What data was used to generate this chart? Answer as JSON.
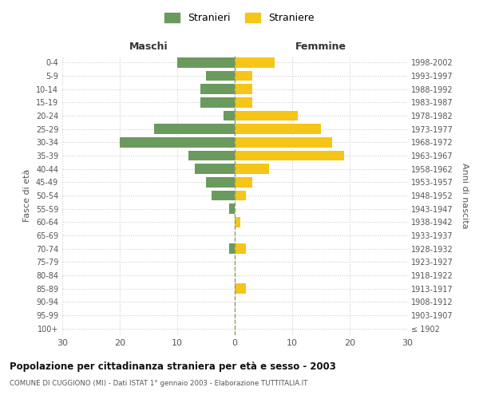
{
  "age_groups": [
    "100+",
    "95-99",
    "90-94",
    "85-89",
    "80-84",
    "75-79",
    "70-74",
    "65-69",
    "60-64",
    "55-59",
    "50-54",
    "45-49",
    "40-44",
    "35-39",
    "30-34",
    "25-29",
    "20-24",
    "15-19",
    "10-14",
    "5-9",
    "0-4"
  ],
  "birth_years": [
    "≤ 1902",
    "1903-1907",
    "1908-1912",
    "1913-1917",
    "1918-1922",
    "1923-1927",
    "1928-1932",
    "1933-1937",
    "1938-1942",
    "1943-1947",
    "1948-1952",
    "1953-1957",
    "1958-1962",
    "1963-1967",
    "1968-1972",
    "1973-1977",
    "1978-1982",
    "1983-1987",
    "1988-1992",
    "1993-1997",
    "1998-2002"
  ],
  "males": [
    0,
    0,
    0,
    0,
    0,
    0,
    1,
    0,
    0,
    1,
    4,
    5,
    7,
    8,
    20,
    14,
    2,
    6,
    6,
    5,
    10
  ],
  "females": [
    0,
    0,
    0,
    2,
    0,
    0,
    2,
    0,
    1,
    0,
    2,
    3,
    6,
    19,
    17,
    15,
    11,
    3,
    3,
    3,
    7
  ],
  "color_male": "#6b9a5e",
  "color_female": "#f5c518",
  "xlim": 30,
  "title": "Popolazione per cittadinanza straniera per età e sesso - 2003",
  "subtitle": "COMUNE DI CUGGIONO (MI) - Dati ISTAT 1° gennaio 2003 - Elaborazione TUTTITALIA.IT",
  "ylabel_left": "Fasce di età",
  "ylabel_right": "Anni di nascita",
  "xlabel_left": "Maschi",
  "xlabel_right": "Femmine",
  "legend_male": "Stranieri",
  "legend_female": "Straniere",
  "bg_color": "#ffffff",
  "grid_color": "#cccccc",
  "zero_line_color": "#999966",
  "tick_color": "#555555",
  "title_color": "#111111",
  "subtitle_color": "#555555"
}
